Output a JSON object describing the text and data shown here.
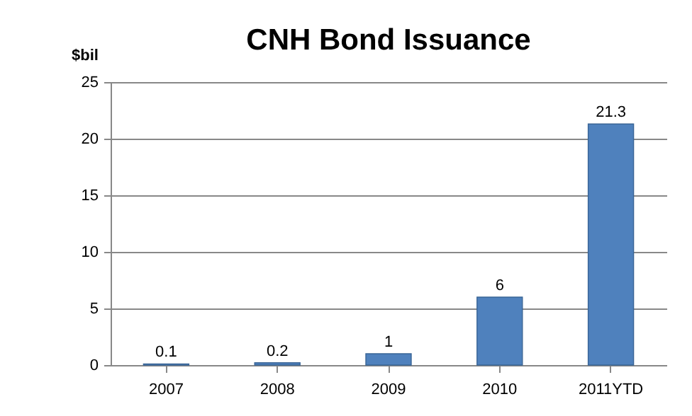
{
  "chart_data": {
    "type": "bar",
    "title": "CNH Bond Issuance",
    "ylabel": "$bil",
    "categories": [
      "2007",
      "2008",
      "2009",
      "2010",
      "2011YTD"
    ],
    "values": [
      0.1,
      0.2,
      1,
      6,
      21.3
    ],
    "color": "#4f81bd",
    "ylim": [
      0,
      25
    ],
    "yticks": [
      0,
      5,
      10,
      15,
      20,
      25
    ],
    "grid": "y",
    "data_labels": true
  }
}
